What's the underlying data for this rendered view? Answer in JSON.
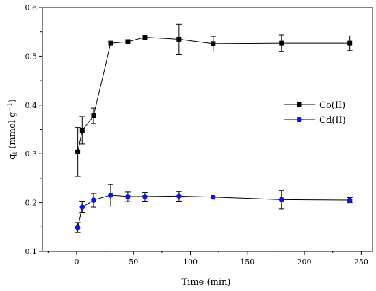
{
  "chart_data": {
    "type": "line",
    "xlabel": "Time (min)",
    "ylabel": "q_t (mmol g⁻¹)",
    "ylabel_main": "q",
    "ylabel_sub": "t",
    "ylabel_unit": " (mmol g",
    "ylabel_sup": "−1",
    "ylabel_close": ")",
    "xlim": [
      -30,
      260
    ],
    "ylim": [
      0.1,
      0.6
    ],
    "xticks": [
      0,
      50,
      100,
      150,
      200,
      250
    ],
    "yticks": [
      0.1,
      0.2,
      0.3,
      0.4,
      0.5,
      0.6
    ],
    "legend_position": "right",
    "series": [
      {
        "name": "Co(II)",
        "color": "#000000",
        "marker": "square",
        "x": [
          1,
          5,
          15,
          30,
          45,
          60,
          90,
          120,
          180,
          240
        ],
        "y": [
          0.304,
          0.348,
          0.378,
          0.527,
          0.53,
          0.539,
          0.535,
          0.526,
          0.527,
          0.527
        ],
        "err": [
          0.05,
          0.028,
          0.016,
          0.0,
          0.0,
          0.0,
          0.031,
          0.015,
          0.017,
          0.015
        ]
      },
      {
        "name": "Cd(II)",
        "color": "#0a16e6",
        "marker": "circle",
        "x": [
          1,
          5,
          15,
          30,
          45,
          60,
          90,
          120,
          180,
          240
        ],
        "y": [
          0.149,
          0.191,
          0.205,
          0.215,
          0.212,
          0.212,
          0.213,
          0.211,
          0.206,
          0.205
        ],
        "err": [
          0.01,
          0.012,
          0.014,
          0.022,
          0.01,
          0.009,
          0.01,
          0.0,
          0.019,
          0.005
        ]
      }
    ]
  }
}
